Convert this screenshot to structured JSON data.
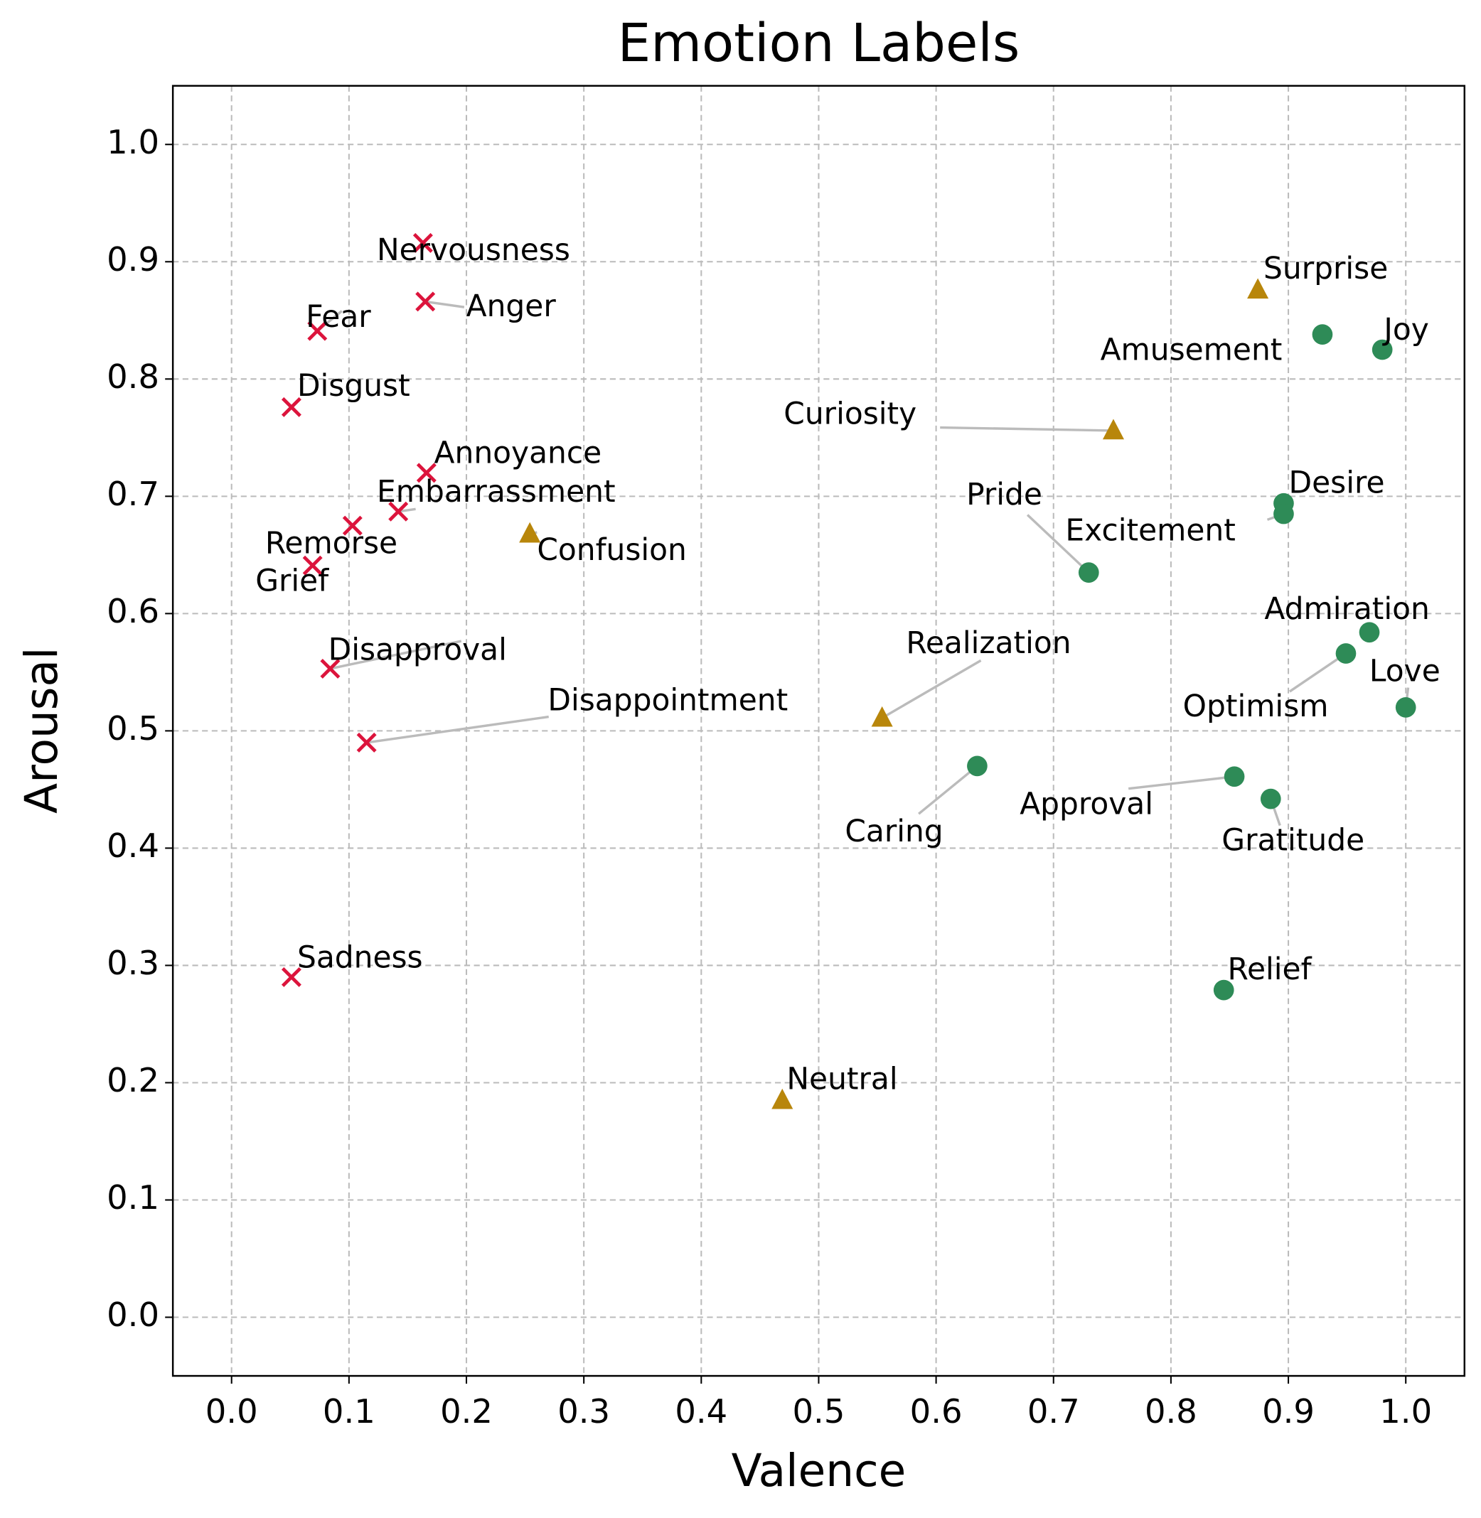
{
  "chart_data": {
    "type": "scatter",
    "title": "Emotion Labels",
    "x_label": "Valence",
    "y_label": "Arousal",
    "xlim": [
      -0.05,
      1.05
    ],
    "ylim": [
      -0.05,
      1.05
    ],
    "xticks": [
      {
        "value": 0,
        "label": "0.0"
      },
      0.1,
      0.2,
      0.3,
      0.4,
      0.5,
      0.6,
      0.7,
      0.8,
      0.9,
      {
        "value": 1,
        "label": "1.0"
      }
    ],
    "yticks": [
      {
        "value": 0,
        "label": "0.0"
      },
      0.1,
      0.2,
      0.3,
      0.4,
      0.5,
      0.6,
      0.7,
      0.8,
      0.9,
      {
        "value": 1,
        "label": "1.0"
      }
    ],
    "grid": true,
    "series": [
      {
        "color": "#dc143c",
        "marker": "x",
        "labels": [
          "Nervousness",
          "Anger",
          "Fear",
          "Disgust",
          "Annoyance",
          "Embarrassment",
          "Remorse",
          "Grief",
          "Disapproval",
          "Disappointment",
          "Sadness"
        ],
        "x": [
          0.163,
          0.165,
          0.073,
          0.051,
          0.166,
          0.142,
          0.103,
          0.069,
          0.084,
          0.115,
          0.051
        ],
        "values": [
          0.916,
          0.866,
          0.841,
          0.776,
          0.72,
          0.687,
          0.675,
          0.641,
          0.553,
          0.49,
          0.29
        ]
      },
      {
        "color": "#2e8b57",
        "marker": "o",
        "labels": [
          "Amusement",
          "Joy",
          "Desire",
          "Excitement",
          "Pride",
          "Admiration",
          "Optimism",
          "Love",
          "Caring",
          "Approval",
          "Gratitude",
          "Relief"
        ],
        "x": [
          0.929,
          0.98,
          0.896,
          0.896,
          0.73,
          0.969,
          0.949,
          1.0,
          0.635,
          0.854,
          0.885,
          0.845
        ],
        "values": [
          0.838,
          0.825,
          0.694,
          0.685,
          0.635,
          0.584,
          0.566,
          0.52,
          0.47,
          0.461,
          0.442,
          0.279
        ]
      },
      {
        "color": "#b8860b",
        "marker": "^",
        "labels": [
          "Surprise",
          "Curiosity",
          "Confusion",
          "Realization",
          "Neutral"
        ],
        "x": [
          0.874,
          0.751,
          0.254,
          0.554,
          0.469
        ],
        "values": [
          0.876,
          0.756,
          0.668,
          0.511,
          0.185
        ]
      }
    ]
  }
}
